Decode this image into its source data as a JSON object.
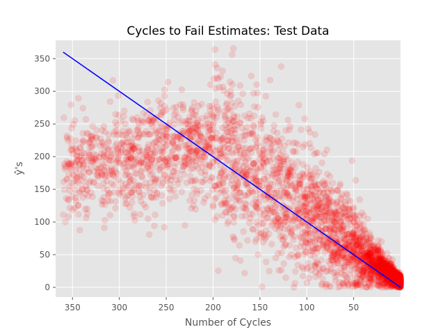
{
  "chart_data": {
    "type": "scatter",
    "title": "Cycles to Fail Estimates: Test Data",
    "xlabel": "Number of Cycles",
    "ylabel": "ŷ's",
    "x_axis_inverted": true,
    "xlim": [
      368,
      0
    ],
    "ylim": [
      -15,
      378
    ],
    "xticks": [
      350,
      300,
      250,
      200,
      150,
      100,
      50
    ],
    "yticks": [
      0,
      50,
      100,
      150,
      200,
      250,
      300,
      350
    ],
    "grid": true,
    "background": "#e5e5e5",
    "grid_color": "#ffffff",
    "series": [
      {
        "kind": "scatter",
        "color": "#ff0000",
        "alpha": 0.12,
        "point_count": 3600,
        "points_sample": [
          [
            347,
            213
          ],
          [
            345,
            208
          ],
          [
            343,
            200
          ],
          [
            338,
            223
          ],
          [
            332,
            222
          ],
          [
            329,
            216
          ],
          [
            325,
            193
          ],
          [
            322,
            182
          ],
          [
            312,
            210
          ],
          [
            307,
            172
          ],
          [
            298,
            160
          ],
          [
            292,
            128
          ],
          [
            290,
            240
          ],
          [
            281,
            260
          ],
          [
            280,
            255
          ],
          [
            276,
            170
          ],
          [
            270,
            210
          ],
          [
            260,
            145
          ],
          [
            250,
            235
          ],
          [
            240,
            190
          ],
          [
            230,
            95
          ],
          [
            225,
            240
          ],
          [
            215,
            220
          ],
          [
            210,
            130
          ],
          [
            200,
            263
          ],
          [
            195,
            210
          ],
          [
            190,
            110
          ],
          [
            180,
            240
          ],
          [
            170,
            200
          ],
          [
            165,
            140
          ],
          [
            157,
            248
          ],
          [
            152,
            50
          ],
          [
            150,
            150
          ],
          [
            140,
            200
          ],
          [
            130,
            100
          ],
          [
            120,
            180
          ],
          [
            110,
            120
          ],
          [
            100,
            150
          ],
          [
            90,
            140
          ],
          [
            80,
            90
          ],
          [
            70,
            100
          ],
          [
            60,
            80
          ],
          [
            55,
            100
          ],
          [
            50,
            60
          ],
          [
            45,
            40
          ],
          [
            40,
            70
          ],
          [
            35,
            50
          ],
          [
            30,
            35
          ],
          [
            20,
            25
          ],
          [
            10,
            12
          ],
          [
            5,
            6
          ],
          [
            2,
            2
          ]
        ]
      },
      {
        "kind": "line",
        "color": "#0000ff",
        "x": [
          360,
          0
        ],
        "y": [
          360,
          0
        ]
      }
    ]
  }
}
